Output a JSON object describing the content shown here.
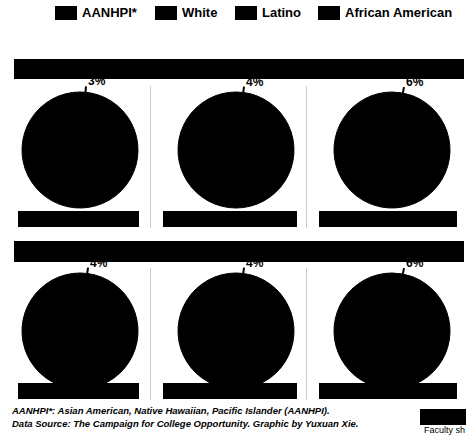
{
  "legend_items": [
    {
      "name": "AANHPI*",
      "color": "#000000"
    },
    {
      "name": "White",
      "color": "#000000"
    },
    {
      "name": "Latino",
      "color": "#000000"
    },
    {
      "name": "African American",
      "color": "#000000"
    }
  ],
  "chart_data": [
    {
      "type": "pie",
      "values": [
        3,
        97
      ],
      "value_labels": [
        "3%",
        null
      ],
      "colors": [
        "#000000",
        "#000000"
      ],
      "data_labels": true
    },
    {
      "type": "pie",
      "values": [
        4,
        96
      ],
      "value_labels": [
        "4%",
        null
      ],
      "colors": [
        "#000000",
        "#000000"
      ],
      "data_labels": true
    },
    {
      "type": "pie",
      "values": [
        6,
        94
      ],
      "value_labels": [
        "6%",
        null
      ],
      "colors": [
        "#000000",
        "#000000"
      ],
      "data_labels": true
    },
    {
      "type": "pie",
      "values": [
        4,
        96
      ],
      "value_labels": [
        "4%",
        null
      ],
      "colors": [
        "#000000",
        "#000000"
      ],
      "data_labels": true
    },
    {
      "type": "pie",
      "values": [
        4,
        96
      ],
      "value_labels": [
        "4%",
        null
      ],
      "colors": [
        "#000000",
        "#000000"
      ],
      "data_labels": true
    },
    {
      "type": "pie",
      "values": [
        6,
        94
      ],
      "value_labels": [
        "6%",
        null
      ],
      "colors": [
        "#000000",
        "#000000"
      ],
      "data_labels": true
    }
  ],
  "notes": [
    "AANHPI*: Asian American, Native Hawaiian, Pacific Islander (AANHPI).",
    "Data Source: The Campaign for College Opportunity. Graphic by Yuxuan Xie.",
    "Faculty sh"
  ]
}
